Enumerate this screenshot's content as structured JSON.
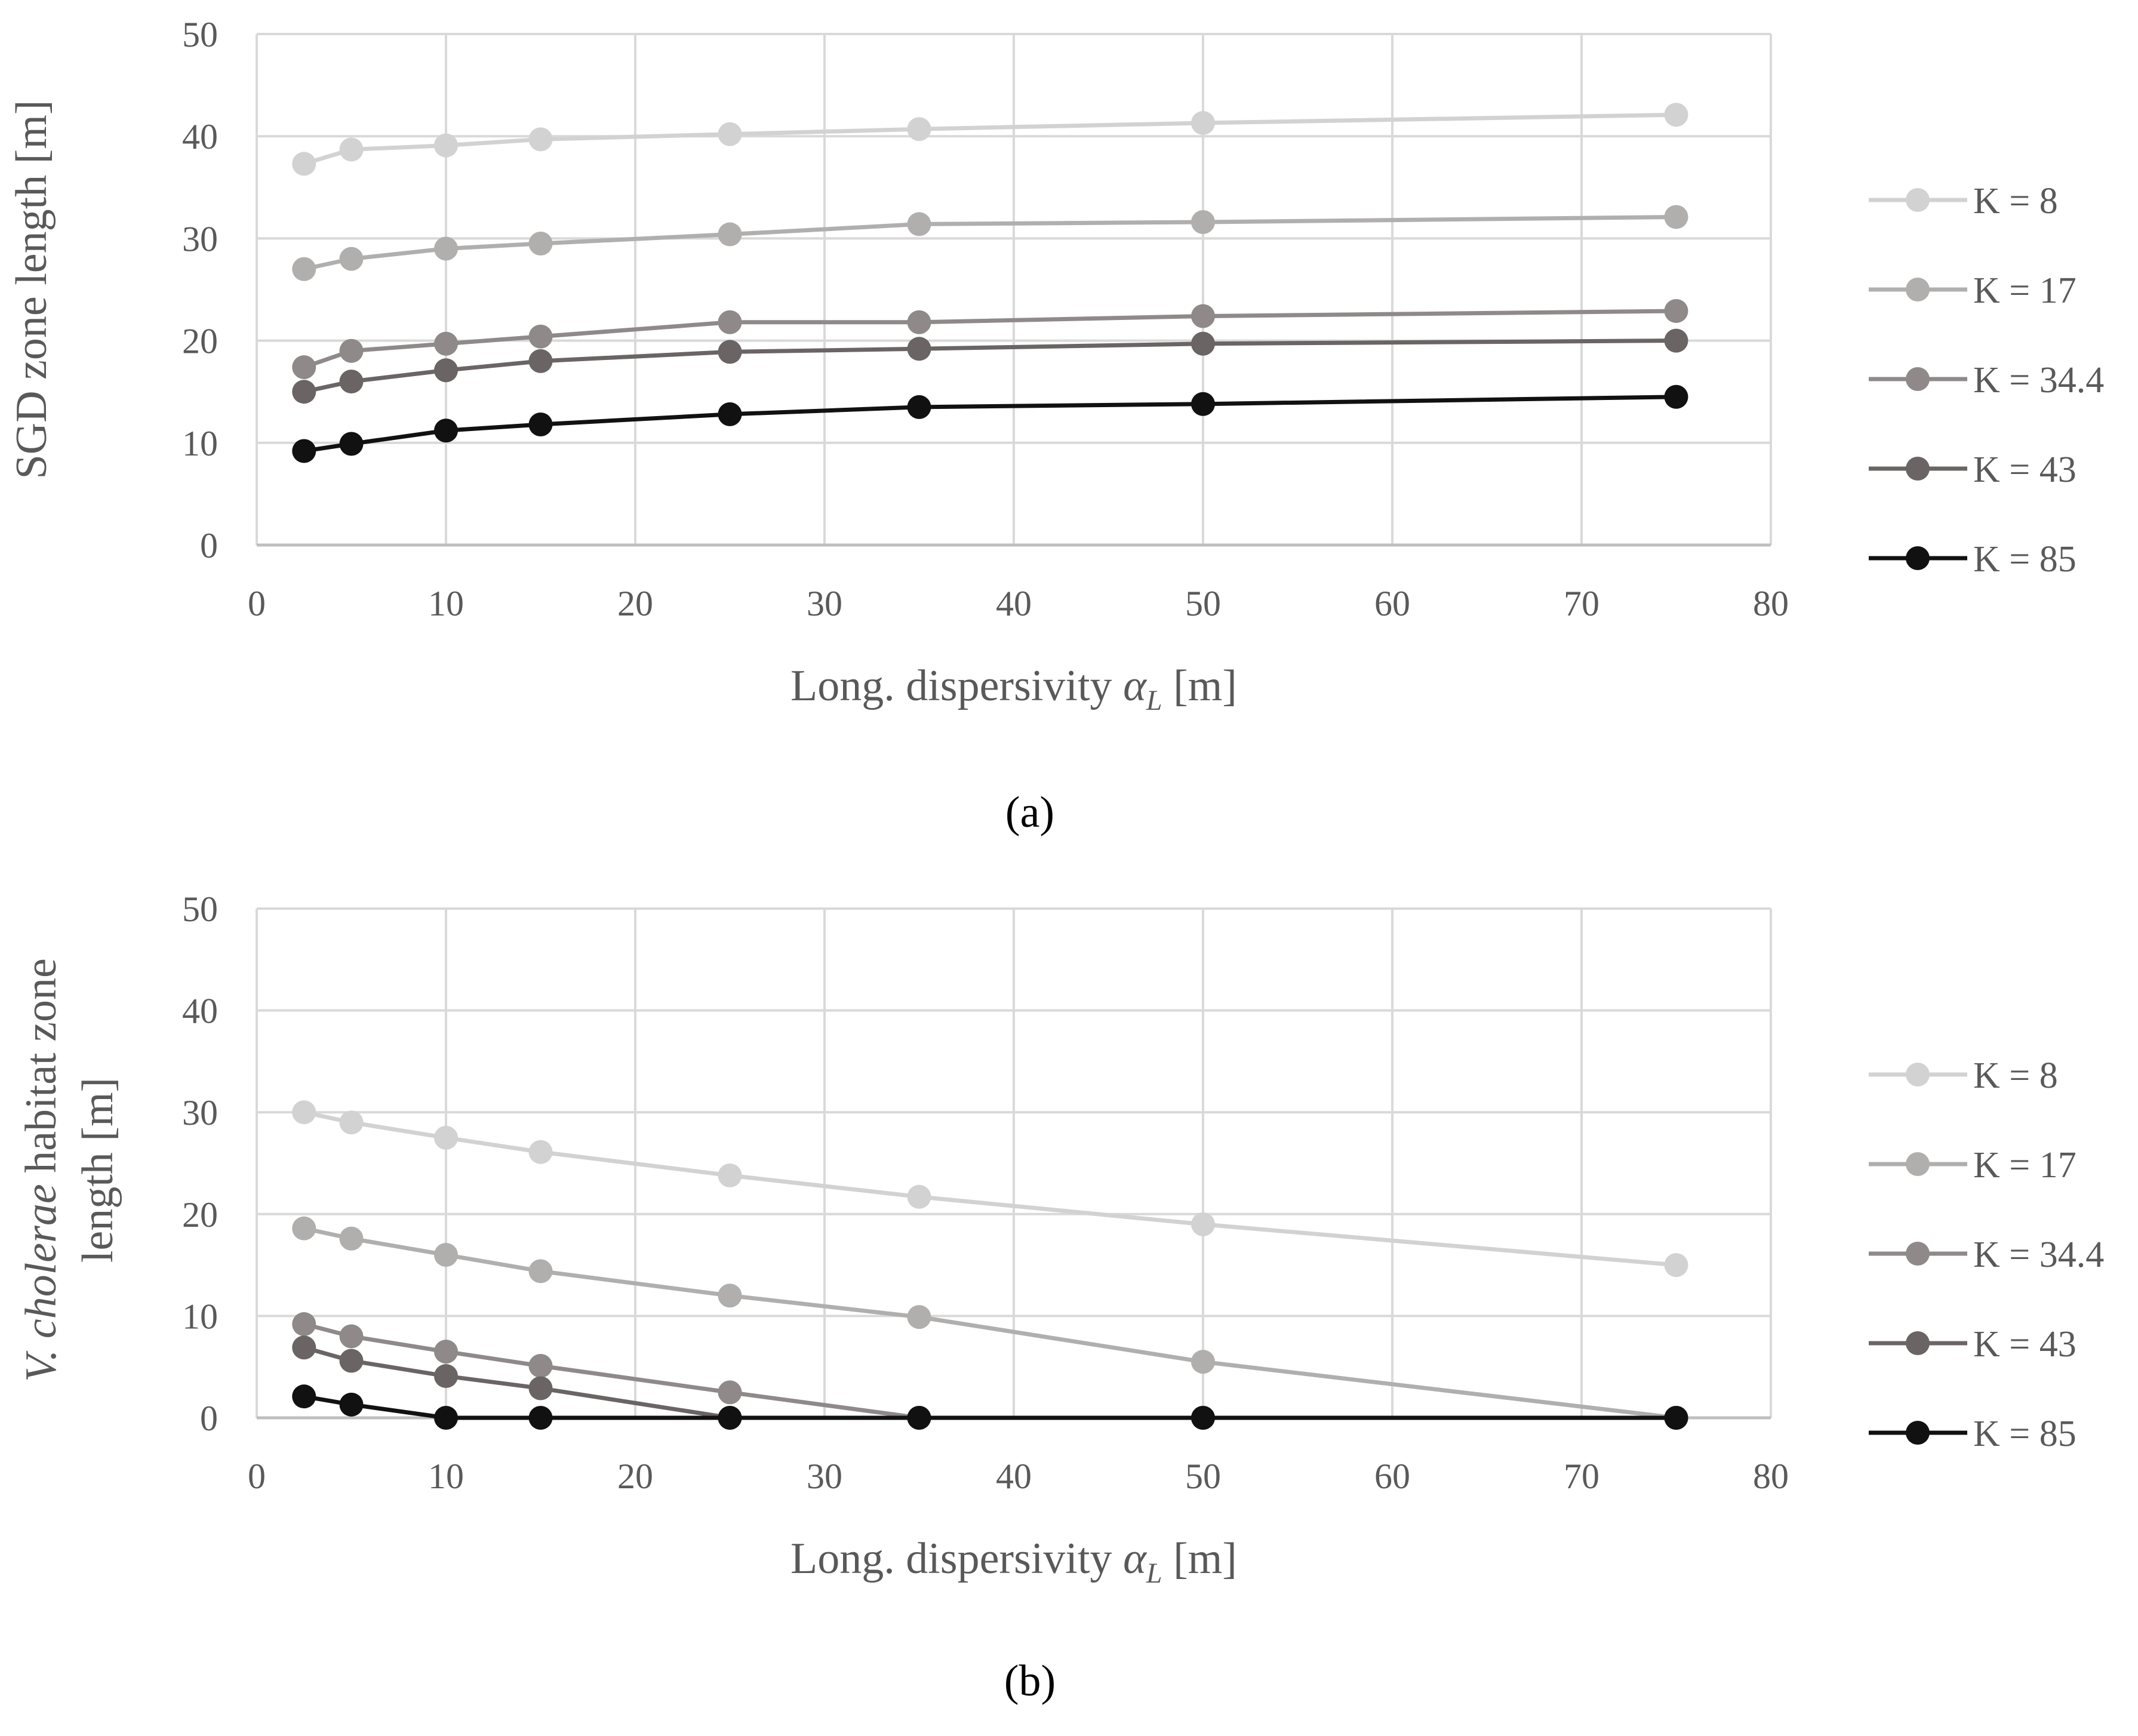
{
  "chart_data": [
    {
      "type": "line",
      "panel_label": "(a)",
      "title": "",
      "xlabel_main": "Long. dispersivity ",
      "xlabel_symbol": "α",
      "xlabel_subscript": "L",
      "xlabel_unit": " [m]",
      "ylabel_lines": [
        "SGD zone length [m]"
      ],
      "xlim": [
        0,
        80
      ],
      "ylim": [
        0,
        50
      ],
      "xticks": [
        0,
        10,
        20,
        30,
        40,
        50,
        60,
        70,
        80
      ],
      "yticks": [
        0,
        10,
        20,
        30,
        40,
        50
      ],
      "grid": true,
      "legend_position": "right",
      "x": [
        2.5,
        5,
        10,
        15,
        25,
        35,
        50,
        75
      ],
      "series": [
        {
          "name": "K = 8",
          "color": "#d2d2d2",
          "values": [
            37.3,
            38.7,
            39.1,
            39.7,
            40.2,
            40.7,
            41.3,
            42.1
          ]
        },
        {
          "name": "K = 17",
          "color": "#b1aeae",
          "values": [
            27.0,
            28.0,
            29.0,
            29.5,
            30.4,
            31.4,
            31.6,
            32.1
          ]
        },
        {
          "name": "K = 34.4",
          "color": "#8f8989",
          "values": [
            17.4,
            19.0,
            19.7,
            20.4,
            21.8,
            21.8,
            22.4,
            22.9
          ]
        },
        {
          "name": "K = 43",
          "color": "#6b6464",
          "values": [
            15.0,
            16.0,
            17.1,
            18.0,
            18.9,
            19.2,
            19.7,
            20.0
          ]
        },
        {
          "name": "K = 85",
          "color": "#111111",
          "values": [
            9.2,
            9.9,
            11.2,
            11.8,
            12.8,
            13.5,
            13.8,
            14.5
          ]
        }
      ]
    },
    {
      "type": "line",
      "panel_label": "(b)",
      "title": "",
      "xlabel_main": "Long. dispersivity ",
      "xlabel_symbol": "α",
      "xlabel_subscript": "L",
      "xlabel_unit": " [m]",
      "ylabel_line1_italic_a": "V. ",
      "ylabel_line1_italic_b": "cholerae",
      "ylabel_line1_rest": " habitat zone",
      "ylabel_line2": "length [m]",
      "xlim": [
        0,
        80
      ],
      "ylim": [
        0,
        50
      ],
      "xticks": [
        0,
        10,
        20,
        30,
        40,
        50,
        60,
        70,
        80
      ],
      "yticks": [
        0,
        10,
        20,
        30,
        40,
        50
      ],
      "grid": true,
      "legend_position": "right",
      "x": [
        2.5,
        5,
        10,
        15,
        25,
        35,
        50,
        75
      ],
      "series": [
        {
          "name": "K = 8",
          "color": "#d2d2d2",
          "values": [
            30.0,
            29.0,
            27.5,
            26.1,
            23.8,
            21.7,
            19.0,
            15.0
          ]
        },
        {
          "name": "K = 17",
          "color": "#b1aeae",
          "values": [
            18.6,
            17.6,
            16.0,
            14.4,
            12.0,
            9.9,
            5.5,
            0.0
          ]
        },
        {
          "name": "K = 34.4",
          "color": "#8f8989",
          "values": [
            9.2,
            8.0,
            6.5,
            5.1,
            2.5,
            0.0,
            0.0,
            0.0
          ]
        },
        {
          "name": "K = 43",
          "color": "#6b6464",
          "values": [
            6.9,
            5.6,
            4.1,
            2.9,
            0.0,
            0.0,
            0.0,
            0.0
          ]
        },
        {
          "name": "K = 85",
          "color": "#111111",
          "values": [
            2.1,
            1.3,
            0.0,
            0.0,
            0.0,
            0.0,
            0.0,
            0.0
          ]
        }
      ]
    }
  ]
}
